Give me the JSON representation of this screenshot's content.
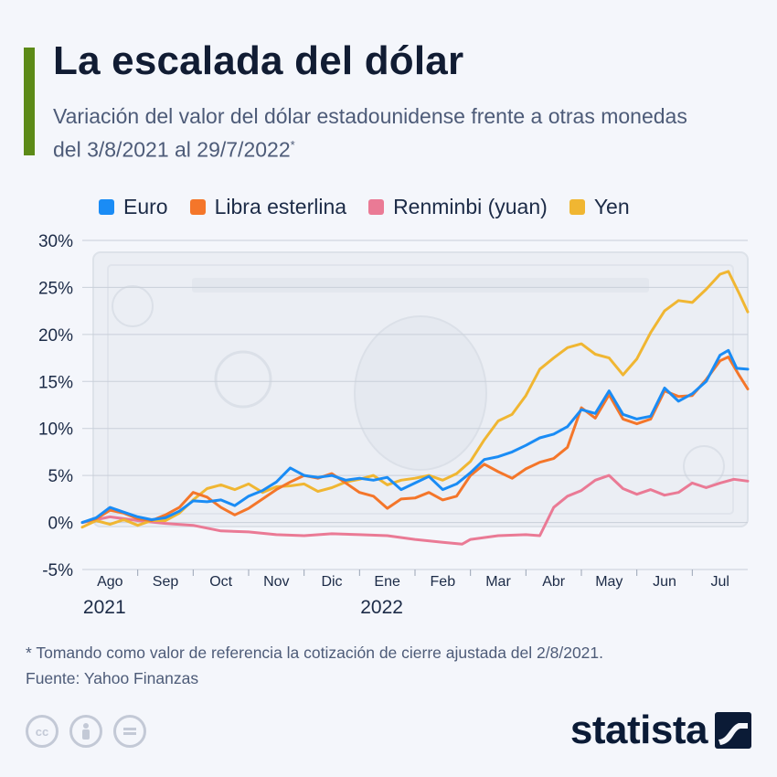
{
  "header": {
    "accent_color": "#5c8a17",
    "title": "La escalada del dólar",
    "subtitle": "Variación del valor del dólar estadounidense frente a otras monedas del 3/8/2021 al 29/7/2022",
    "subtitle_mark": "*"
  },
  "footer": {
    "note": "* Tomando como valor de referencia la cotización de cierre ajustada del 2/8/2021.",
    "source": "Fuente: Yahoo Finanzas",
    "brand": "statista",
    "license_icons": [
      "cc-icon",
      "by-person-icon",
      "nd-equal-icon"
    ]
  },
  "chart_data": {
    "type": "line",
    "background_image": "us-dollar-bill",
    "y_ticks": [
      "30%",
      "25%",
      "20%",
      "15%",
      "10%",
      "5%",
      "0%",
      "-5%"
    ],
    "ylim": [
      -5,
      30
    ],
    "xlim": [
      0,
      12
    ],
    "x_ticks": [
      {
        "label": "Ago",
        "x": 0.5
      },
      {
        "label": "Sep",
        "x": 1.5
      },
      {
        "label": "Oct",
        "x": 2.5
      },
      {
        "label": "Nov",
        "x": 3.5
      },
      {
        "label": "Dic",
        "x": 4.5
      },
      {
        "label": "Ene",
        "x": 5.5
      },
      {
        "label": "Feb",
        "x": 6.5
      },
      {
        "label": "Mar",
        "x": 7.5
      },
      {
        "label": "Abr",
        "x": 8.5
      },
      {
        "label": "May",
        "x": 9.5
      },
      {
        "label": "Jun",
        "x": 10.5
      },
      {
        "label": "Jul",
        "x": 11.5
      }
    ],
    "year_labels": [
      {
        "label": "2021",
        "x": 0.4
      },
      {
        "label": "2022",
        "x": 5.4
      }
    ],
    "grid": true,
    "legend_position": "top",
    "series": [
      {
        "name": "Euro",
        "color": "#1a8cf5",
        "points": [
          [
            0,
            0
          ],
          [
            0.25,
            0.5
          ],
          [
            0.5,
            1.6
          ],
          [
            0.75,
            1.1
          ],
          [
            1,
            0.6
          ],
          [
            1.25,
            0.3
          ],
          [
            1.5,
            0.5
          ],
          [
            1.75,
            1.2
          ],
          [
            2,
            2.3
          ],
          [
            2.25,
            2.2
          ],
          [
            2.5,
            2.4
          ],
          [
            2.75,
            1.8
          ],
          [
            3,
            2.8
          ],
          [
            3.25,
            3.4
          ],
          [
            3.5,
            4.3
          ],
          [
            3.75,
            5.8
          ],
          [
            4,
            5.0
          ],
          [
            4.25,
            4.8
          ],
          [
            4.5,
            5.0
          ],
          [
            4.75,
            4.5
          ],
          [
            5,
            4.7
          ],
          [
            5.25,
            4.5
          ],
          [
            5.5,
            4.8
          ],
          [
            5.75,
            3.5
          ],
          [
            6,
            4.2
          ],
          [
            6.25,
            4.9
          ],
          [
            6.5,
            3.5
          ],
          [
            6.75,
            4.1
          ],
          [
            7,
            5.3
          ],
          [
            7.25,
            6.7
          ],
          [
            7.5,
            7.0
          ],
          [
            7.75,
            7.5
          ],
          [
            8,
            8.2
          ],
          [
            8.25,
            9.0
          ],
          [
            8.5,
            9.4
          ],
          [
            8.75,
            10.2
          ],
          [
            9,
            12.0
          ],
          [
            9.25,
            11.6
          ],
          [
            9.5,
            14.0
          ],
          [
            9.75,
            11.5
          ],
          [
            10,
            11.0
          ],
          [
            10.25,
            11.3
          ],
          [
            10.5,
            14.3
          ],
          [
            10.75,
            12.9
          ],
          [
            11,
            13.7
          ],
          [
            11.25,
            15.0
          ],
          [
            11.5,
            17.8
          ],
          [
            11.65,
            18.3
          ],
          [
            11.8,
            16.4
          ],
          [
            12,
            16.3
          ]
        ]
      },
      {
        "name": "Libra esterlina",
        "color": "#f4762a",
        "points": [
          [
            0,
            0
          ],
          [
            0.25,
            0.4
          ],
          [
            0.5,
            1.3
          ],
          [
            0.75,
            1.0
          ],
          [
            1,
            0.4
          ],
          [
            1.25,
            0.2
          ],
          [
            1.5,
            0.8
          ],
          [
            1.75,
            1.6
          ],
          [
            2,
            3.2
          ],
          [
            2.25,
            2.7
          ],
          [
            2.5,
            1.6
          ],
          [
            2.75,
            0.8
          ],
          [
            3,
            1.5
          ],
          [
            3.25,
            2.5
          ],
          [
            3.5,
            3.5
          ],
          [
            3.75,
            4.3
          ],
          [
            4,
            5.0
          ],
          [
            4.25,
            4.7
          ],
          [
            4.5,
            5.2
          ],
          [
            4.75,
            4.2
          ],
          [
            5,
            3.2
          ],
          [
            5.25,
            2.8
          ],
          [
            5.5,
            1.5
          ],
          [
            5.75,
            2.5
          ],
          [
            6,
            2.6
          ],
          [
            6.25,
            3.2
          ],
          [
            6.5,
            2.4
          ],
          [
            6.75,
            2.8
          ],
          [
            7,
            5.0
          ],
          [
            7.25,
            6.2
          ],
          [
            7.5,
            5.4
          ],
          [
            7.75,
            4.7
          ],
          [
            8,
            5.7
          ],
          [
            8.25,
            6.4
          ],
          [
            8.5,
            6.8
          ],
          [
            8.75,
            8.0
          ],
          [
            9,
            12.2
          ],
          [
            9.25,
            11.1
          ],
          [
            9.5,
            13.6
          ],
          [
            9.75,
            11.0
          ],
          [
            10,
            10.5
          ],
          [
            10.25,
            11.0
          ],
          [
            10.5,
            14.0
          ],
          [
            10.75,
            13.4
          ],
          [
            11,
            13.5
          ],
          [
            11.25,
            15.2
          ],
          [
            11.5,
            17.2
          ],
          [
            11.65,
            17.6
          ],
          [
            11.85,
            15.6
          ],
          [
            12,
            14.2
          ]
        ]
      },
      {
        "name": "Renminbi (yuan)",
        "color": "#ea7a95",
        "points": [
          [
            0,
            0
          ],
          [
            0.5,
            0.6
          ],
          [
            1,
            0.2
          ],
          [
            1.5,
            -0.1
          ],
          [
            2,
            -0.3
          ],
          [
            2.5,
            -0.9
          ],
          [
            3,
            -1.0
          ],
          [
            3.5,
            -1.3
          ],
          [
            4,
            -1.4
          ],
          [
            4.5,
            -1.2
          ],
          [
            5,
            -1.3
          ],
          [
            5.5,
            -1.4
          ],
          [
            6,
            -1.8
          ],
          [
            6.5,
            -2.1
          ],
          [
            6.85,
            -2.3
          ],
          [
            7,
            -1.8
          ],
          [
            7.5,
            -1.4
          ],
          [
            8,
            -1.3
          ],
          [
            8.25,
            -1.4
          ],
          [
            8.5,
            1.6
          ],
          [
            8.75,
            2.8
          ],
          [
            9,
            3.4
          ],
          [
            9.25,
            4.5
          ],
          [
            9.5,
            5.0
          ],
          [
            9.75,
            3.6
          ],
          [
            10,
            3.0
          ],
          [
            10.25,
            3.5
          ],
          [
            10.5,
            2.9
          ],
          [
            10.75,
            3.2
          ],
          [
            11,
            4.2
          ],
          [
            11.25,
            3.7
          ],
          [
            11.5,
            4.2
          ],
          [
            11.75,
            4.6
          ],
          [
            12,
            4.4
          ]
        ]
      },
      {
        "name": "Yen",
        "color": "#f0b632",
        "points": [
          [
            0,
            -0.5
          ],
          [
            0.25,
            0.2
          ],
          [
            0.5,
            -0.2
          ],
          [
            0.75,
            0.3
          ],
          [
            1,
            -0.3
          ],
          [
            1.25,
            0.2
          ],
          [
            1.5,
            0.2
          ],
          [
            1.75,
            1.0
          ],
          [
            2,
            2.4
          ],
          [
            2.25,
            3.6
          ],
          [
            2.5,
            4.0
          ],
          [
            2.75,
            3.5
          ],
          [
            3,
            4.1
          ],
          [
            3.25,
            3.2
          ],
          [
            3.5,
            3.8
          ],
          [
            3.75,
            3.9
          ],
          [
            4,
            4.1
          ],
          [
            4.25,
            3.3
          ],
          [
            4.5,
            3.7
          ],
          [
            4.75,
            4.3
          ],
          [
            5,
            4.6
          ],
          [
            5.25,
            5.0
          ],
          [
            5.5,
            4.0
          ],
          [
            5.75,
            4.5
          ],
          [
            6,
            4.7
          ],
          [
            6.25,
            5.0
          ],
          [
            6.5,
            4.5
          ],
          [
            6.75,
            5.2
          ],
          [
            7,
            6.5
          ],
          [
            7.25,
            8.8
          ],
          [
            7.5,
            10.8
          ],
          [
            7.75,
            11.5
          ],
          [
            8,
            13.5
          ],
          [
            8.25,
            16.3
          ],
          [
            8.5,
            17.5
          ],
          [
            8.75,
            18.6
          ],
          [
            9,
            19.0
          ],
          [
            9.25,
            17.9
          ],
          [
            9.5,
            17.5
          ],
          [
            9.75,
            15.7
          ],
          [
            10,
            17.4
          ],
          [
            10.25,
            20.2
          ],
          [
            10.5,
            22.5
          ],
          [
            10.75,
            23.6
          ],
          [
            11,
            23.4
          ],
          [
            11.25,
            24.8
          ],
          [
            11.5,
            26.4
          ],
          [
            11.65,
            26.7
          ],
          [
            11.85,
            24.3
          ],
          [
            12,
            22.4
          ]
        ]
      }
    ]
  }
}
